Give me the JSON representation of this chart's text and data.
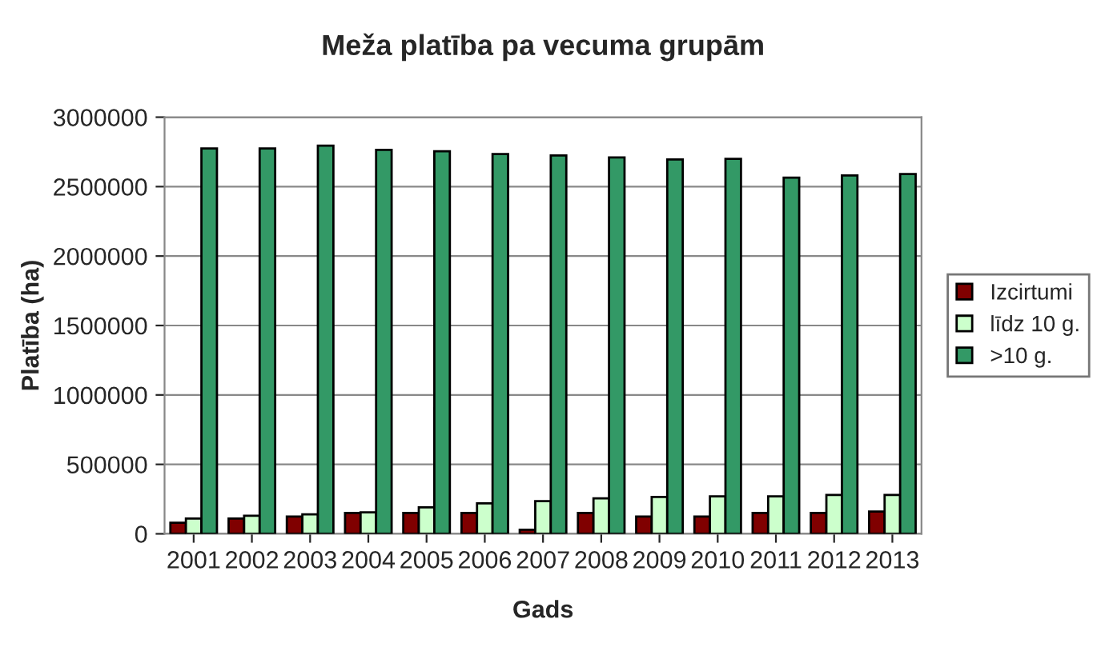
{
  "chart_data": {
    "type": "bar",
    "title": "Meža platība pa vecuma grupām",
    "xlabel": "Gads",
    "ylabel": "Platība (ha)",
    "categories": [
      "2001",
      "2002",
      "2003",
      "2004",
      "2005",
      "2006",
      "2007",
      "2008",
      "2009",
      "2010",
      "2011",
      "2012",
      "2013"
    ],
    "series": [
      {
        "name": "Izcirtumi",
        "color": "#800000",
        "values": [
          80000,
          110000,
          125000,
          150000,
          150000,
          150000,
          30000,
          150000,
          125000,
          125000,
          150000,
          150000,
          160000
        ]
      },
      {
        "name": "līdz 10 g.",
        "color": "#ccffcc",
        "values": [
          110000,
          130000,
          140000,
          155000,
          190000,
          220000,
          235000,
          255000,
          265000,
          270000,
          270000,
          280000,
          280000
        ]
      },
      {
        "name": ">10 g.",
        "color": "#339966",
        "values": [
          2775000,
          2775000,
          2795000,
          2765000,
          2755000,
          2735000,
          2725000,
          2710000,
          2695000,
          2700000,
          2565000,
          2580000,
          2590000
        ]
      }
    ],
    "ylim": [
      0,
      3000000
    ],
    "yticks": [
      0,
      500000,
      1000000,
      1500000,
      2000000,
      2500000,
      3000000
    ],
    "grid": "y",
    "legend": "right"
  }
}
